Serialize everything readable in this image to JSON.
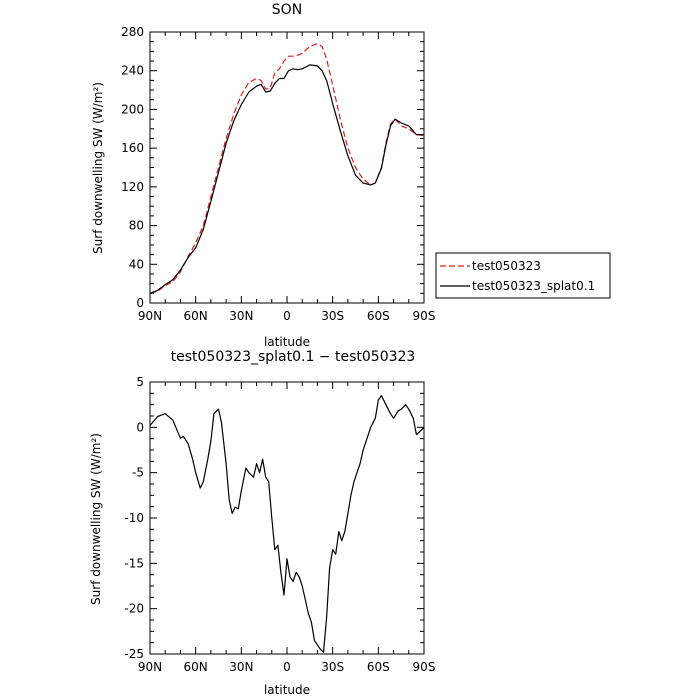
{
  "chart_data": [
    {
      "type": "line",
      "title": "SON",
      "xlabel": "latitude",
      "ylabel": "Surf downwelling SW (W/m²)",
      "x_ticks": [
        "90N",
        "60N",
        "30N",
        "0",
        "30S",
        "60S",
        "90S"
      ],
      "x_tick_values": [
        90,
        60,
        30,
        0,
        -30,
        -60,
        -90
      ],
      "xlim": [
        90,
        -90
      ],
      "ylim": [
        0,
        280
      ],
      "y_ticks": [
        0,
        40,
        80,
        120,
        160,
        200,
        240,
        280
      ],
      "legend": {
        "placement": "right"
      },
      "series": [
        {
          "name": "test050323",
          "color": "#dd2020",
          "dash": true,
          "x": [
            90,
            85,
            80,
            75,
            70,
            65,
            60,
            55,
            50,
            45,
            40,
            35,
            30,
            25,
            20,
            17,
            14,
            11,
            8,
            5,
            2,
            -1,
            -4,
            -7,
            -10,
            -15,
            -20,
            -23,
            -26,
            -30,
            -35,
            -40,
            -45,
            -50,
            -55,
            -58,
            -62,
            -65,
            -68,
            -71,
            -75,
            -80,
            -85,
            -90
          ],
          "y": [
            10,
            12,
            18,
            22,
            32,
            48,
            62,
            80,
            110,
            140,
            170,
            195,
            215,
            228,
            232,
            230,
            221,
            222,
            238,
            242,
            250,
            255,
            255,
            256,
            258,
            265,
            268,
            265,
            252,
            225,
            190,
            160,
            140,
            128,
            122,
            124,
            140,
            165,
            185,
            190,
            183,
            180,
            174,
            173
          ]
        },
        {
          "name": "test050323_splat0.1",
          "color": "#000000",
          "dash": false,
          "x": [
            90,
            85,
            80,
            75,
            70,
            65,
            60,
            55,
            50,
            45,
            40,
            35,
            30,
            25,
            20,
            17,
            14,
            11,
            8,
            5,
            2,
            -1,
            -4,
            -7,
            -10,
            -15,
            -20,
            -23,
            -26,
            -30,
            -35,
            -40,
            -45,
            -50,
            -55,
            -58,
            -62,
            -65,
            -68,
            -71,
            -75,
            -80,
            -85,
            -90
          ],
          "y": [
            10,
            13,
            19,
            24,
            34,
            47,
            57,
            76,
            105,
            135,
            165,
            188,
            205,
            218,
            224,
            226,
            218,
            219,
            227,
            232,
            232,
            240,
            242,
            241,
            242,
            246,
            245,
            240,
            230,
            206,
            178,
            152,
            132,
            124,
            122,
            124,
            139,
            163,
            183,
            190,
            186,
            183,
            174,
            174
          ]
        }
      ]
    },
    {
      "type": "line",
      "title": "test050323_splat0.1 − test050323",
      "xlabel": "latitude",
      "ylabel": "Surf downwelling SW (W/m²)",
      "x_ticks": [
        "90N",
        "60N",
        "30N",
        "0",
        "30S",
        "60S",
        "90S"
      ],
      "x_tick_values": [
        90,
        60,
        30,
        0,
        -30,
        -60,
        -90
      ],
      "xlim": [
        90,
        -90
      ],
      "ylim": [
        -25,
        5
      ],
      "y_ticks": [
        -25,
        -20,
        -15,
        -10,
        -5,
        0,
        5
      ],
      "series": [
        {
          "name": "",
          "color": "#000000",
          "dash": false,
          "x": [
            90,
            85,
            80,
            75,
            70,
            68,
            65,
            62,
            60,
            57,
            55,
            52,
            50,
            48,
            45,
            43,
            40,
            38,
            36,
            34,
            32,
            30,
            27,
            25,
            22,
            20,
            18,
            16,
            14,
            12,
            10,
            8,
            6,
            4,
            2,
            0,
            -2,
            -4,
            -6,
            -8,
            -10,
            -12,
            -14,
            -16,
            -18,
            -20,
            -22,
            -24,
            -26,
            -28,
            -30,
            -32,
            -34,
            -36,
            -38,
            -40,
            -42,
            -44,
            -46,
            -48,
            -50,
            -52,
            -55,
            -58,
            -60,
            -62,
            -65,
            -68,
            -70,
            -73,
            -75,
            -78,
            -80,
            -83,
            -85,
            -87,
            -90
          ],
          "y": [
            0.2,
            1.2,
            1.5,
            0.8,
            -1.2,
            -1.0,
            -1.8,
            -3.5,
            -5.0,
            -6.7,
            -6.0,
            -3.5,
            -1.5,
            1.5,
            2.0,
            0.5,
            -4.0,
            -8.0,
            -9.5,
            -8.8,
            -9.0,
            -7.0,
            -4.5,
            -5.0,
            -5.5,
            -4.0,
            -5.0,
            -3.5,
            -5.5,
            -6.0,
            -10.0,
            -13.5,
            -13.0,
            -16.0,
            -18.5,
            -14.5,
            -16.5,
            -17.0,
            -16.0,
            -16.5,
            -17.5,
            -19.0,
            -20.5,
            -21.5,
            -23.5,
            -24.0,
            -24.5,
            -24.8,
            -21.0,
            -15.5,
            -13.5,
            -14.0,
            -11.5,
            -12.5,
            -11.5,
            -9.5,
            -7.5,
            -6.0,
            -5.0,
            -4.0,
            -2.5,
            -1.5,
            0.0,
            1.0,
            3.0,
            3.5,
            2.5,
            1.5,
            1.0,
            1.8,
            2.0,
            2.5,
            2.0,
            1.0,
            -0.8,
            -0.5,
            0.0
          ]
        }
      ]
    }
  ]
}
